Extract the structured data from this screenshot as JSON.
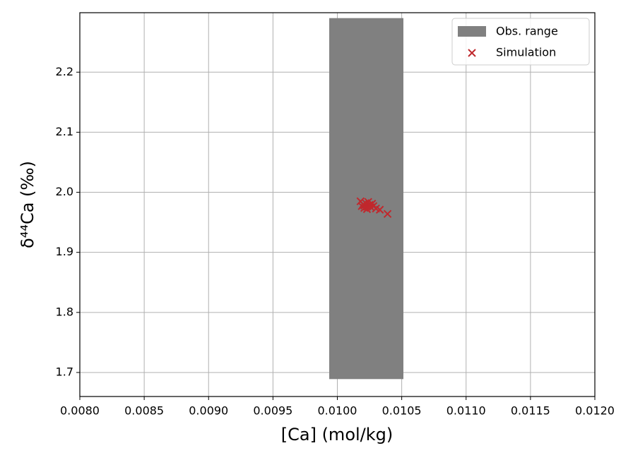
{
  "chart_data": {
    "type": "scatter",
    "xlabel": "[Ca] (mol/kg)",
    "ylabel": "δ⁴⁴Ca (‰)",
    "xlim": [
      0.008,
      0.012
    ],
    "ylim": [
      1.66,
      2.299
    ],
    "xticks": [
      {
        "value": 0.008,
        "label": "0.0080"
      },
      0.0085,
      {
        "value": 0.009,
        "label": "0.0090"
      },
      0.0095,
      {
        "value": 0.01,
        "label": "0.0100"
      },
      0.0105,
      {
        "value": 0.011,
        "label": "0.0110"
      },
      0.0115,
      {
        "value": 0.012,
        "label": "0.0120"
      }
    ],
    "yticks": [
      1.7,
      1.8,
      1.9,
      {
        "value": 2.0,
        "label": "2.0"
      },
      2.1,
      2.2
    ],
    "grid": true,
    "legend": "upper right",
    "obs_range": {
      "name": "Obs. range",
      "color": "#808080",
      "x": [
        0.009937,
        0.010513
      ],
      "y": [
        1.689,
        2.29
      ]
    },
    "series": [
      {
        "name": "Simulation",
        "color": "#c0282d",
        "marker": "x",
        "x": [
          0.01018,
          0.0102,
          0.01021,
          0.01022,
          0.01023,
          0.01024,
          0.01025,
          0.01026,
          0.01027,
          0.01019,
          0.01021,
          0.01023,
          0.01028,
          0.0103,
          0.01033,
          0.01039
        ],
        "values": [
          1.985,
          1.98,
          1.978,
          1.982,
          1.976,
          1.984,
          1.979,
          1.975,
          1.981,
          1.977,
          1.974,
          1.972,
          1.977,
          1.973,
          1.971,
          1.964
        ]
      }
    ]
  }
}
